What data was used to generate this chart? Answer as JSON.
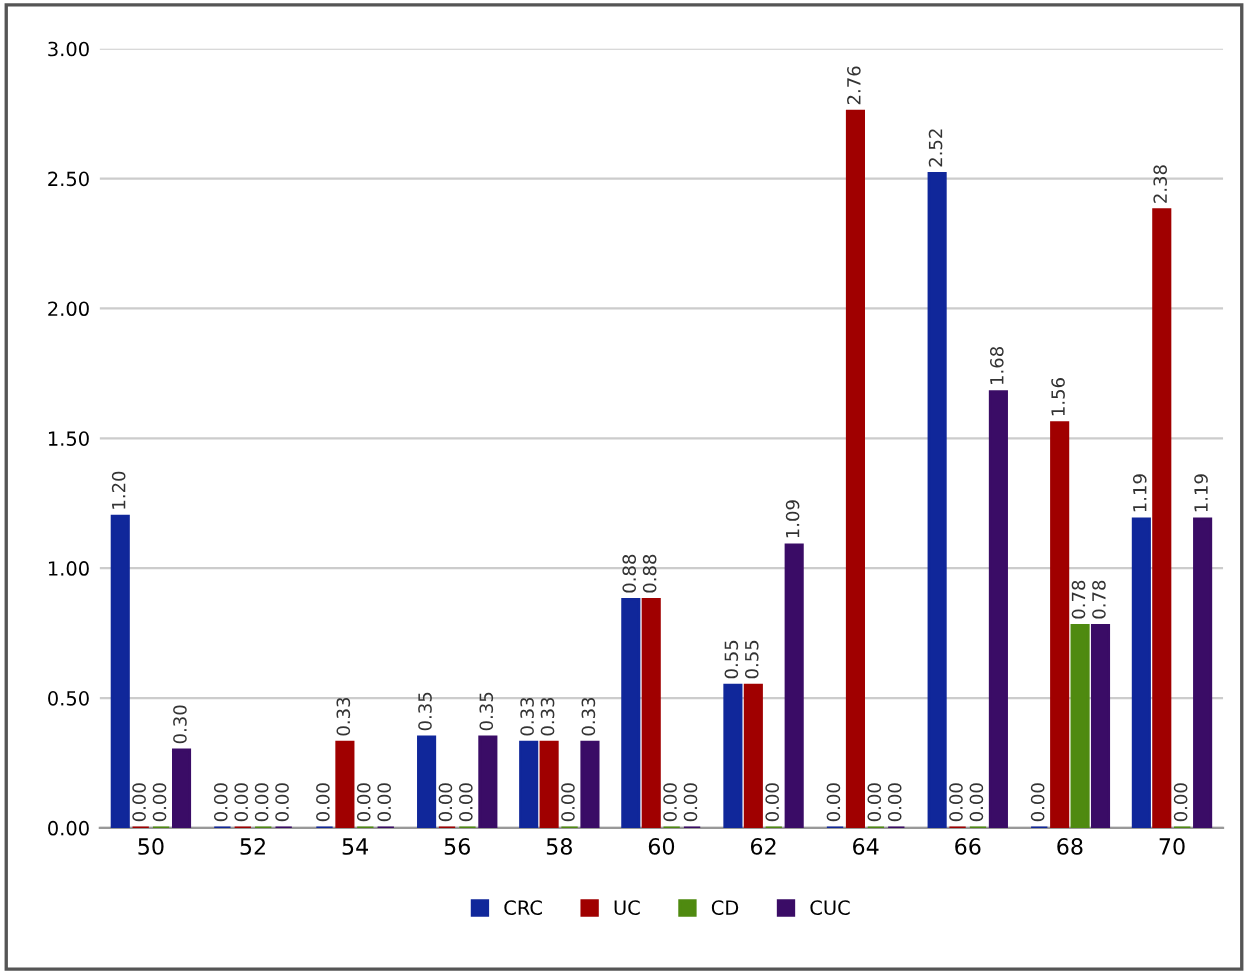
{
  "chart_data": {
    "type": "bar",
    "categories": [
      "50",
      "52",
      "54",
      "56",
      "58",
      "60",
      "62",
      "64",
      "66",
      "68",
      "70"
    ],
    "series": [
      {
        "name": "CRC",
        "color": "#10279a",
        "values": [
          1.2,
          0,
          0,
          0.35,
          0.33,
          0.88,
          0.55,
          0,
          2.52,
          0,
          1.19
        ],
        "value_labels": [
          "1.20",
          "0.00",
          "0.00",
          "0.35",
          "0.33",
          "0.88",
          "0.55",
          "0.00",
          "2.52",
          "0.00",
          "1.19"
        ]
      },
      {
        "name": "UC",
        "color": "#a00000",
        "values": [
          0,
          0,
          0.33,
          0,
          0.33,
          0.88,
          0.55,
          2.76,
          0,
          1.56,
          2.38
        ],
        "value_labels": [
          "0.00",
          "0.00",
          "0.33",
          "0.00",
          "0.33",
          "0.88",
          "0.55",
          "2.76",
          "0.00",
          "1.56",
          "2.38"
        ]
      },
      {
        "name": "CD",
        "color": "#4f8a10",
        "values": [
          0,
          0,
          0,
          0,
          0,
          0,
          0,
          0,
          0,
          0.78,
          0
        ],
        "value_labels": [
          "0.00",
          "0.00",
          "0.00",
          "0.00",
          "0.00",
          "0.00",
          "0.00",
          "0.00",
          "0.00",
          "0.78",
          "0.00"
        ]
      },
      {
        "name": "CUC",
        "color": "#3a0c66",
        "values": [
          0.3,
          0,
          0,
          0.35,
          0.33,
          0,
          1.09,
          0,
          1.68,
          0.78,
          1.19
        ],
        "value_labels": [
          "0.30",
          "0.00",
          "0.00",
          "0.35",
          "0.33",
          "0.00",
          "1.09",
          "0.00",
          "1.68",
          "0.78",
          "1.19"
        ]
      }
    ],
    "ylim": [
      0,
      3
    ],
    "yticks": [
      "0.00",
      "0.50",
      "1.00",
      "1.50",
      "2.00",
      "2.50",
      "3.00"
    ],
    "grid": "y",
    "legend": "bottom"
  }
}
